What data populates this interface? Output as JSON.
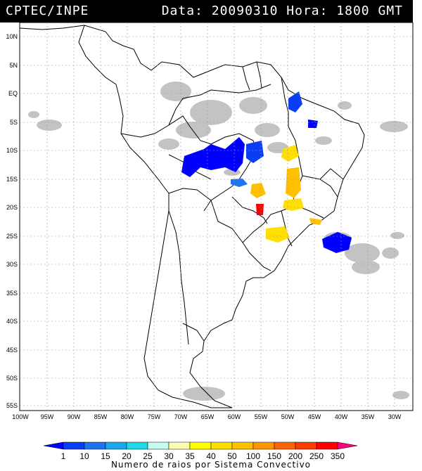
{
  "header": {
    "source": "CPTEC/INPE",
    "datetime": "Data: 20090310 Hora: 1800 GMT"
  },
  "map": {
    "lat_labels": [
      "10N",
      "5N",
      "EQ",
      "5S",
      "10S",
      "15S",
      "20S",
      "25S",
      "30S",
      "35S",
      "40S",
      "45S",
      "50S",
      "55S"
    ],
    "lon_labels": [
      "100W",
      "95W",
      "90W",
      "85W",
      "80W",
      "75W",
      "70W",
      "65W",
      "60W",
      "55W",
      "50W",
      "45W",
      "40W",
      "35W",
      "30W"
    ],
    "gridlines": "dashed"
  },
  "legend": {
    "title": "Numero de raios por Sistema Convectivo",
    "levels": [
      "1",
      "10",
      "15",
      "20",
      "25",
      "30",
      "35",
      "40",
      "50",
      "100",
      "150",
      "200",
      "250",
      "350"
    ],
    "colors": [
      "#0000ff",
      "#0a3ef5",
      "#1f73ef",
      "#1aa8ea",
      "#21d9e6",
      "#c8fbf0",
      "#fdfdb4",
      "#ffff00",
      "#ffdf00",
      "#ffc000",
      "#ff9600",
      "#ff6400",
      "#ff3c00",
      "#ff0000",
      "#ff007a"
    ]
  }
}
